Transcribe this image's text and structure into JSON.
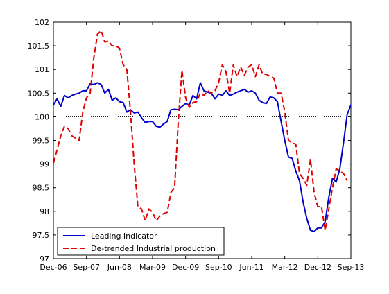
{
  "chart_data": {
    "type": "line",
    "title": "",
    "xlabel": "",
    "ylabel": "",
    "ylim": [
      97,
      102
    ],
    "xlim": [
      "2006-12",
      "2013-09"
    ],
    "x_ticks": [
      "2006-12",
      "2007-09",
      "2008-06",
      "2009-03",
      "2009-12",
      "2010-09",
      "2011-06",
      "2012-03",
      "2012-12",
      "2013-09"
    ],
    "x_tick_labels": [
      "Dec-06",
      "Sep-07",
      "Jun-08",
      "Mar-09",
      "Dec-09",
      "Sep-10",
      "Jun-11",
      "Mar-12",
      "Dec-12",
      "Sep-13"
    ],
    "y_ticks": [
      97,
      97.5,
      98,
      98.5,
      99,
      99.5,
      100,
      100.5,
      101,
      101.5,
      102
    ],
    "reference_line": {
      "y": 100,
      "style": "dotted",
      "color": "#000000"
    },
    "grid": false,
    "legend_position": "bottom-left",
    "series": [
      {
        "name": "Leading Indicator",
        "color": "#0000cc",
        "style": "solid",
        "points": [
          [
            "2006-12",
            100.25
          ],
          [
            "2007-01",
            100.38
          ],
          [
            "2007-02",
            100.22
          ],
          [
            "2007-03",
            100.45
          ],
          [
            "2007-04",
            100.4
          ],
          [
            "2007-05",
            100.45
          ],
          [
            "2007-06",
            100.48
          ],
          [
            "2007-07",
            100.5
          ],
          [
            "2007-08",
            100.55
          ],
          [
            "2007-09",
            100.55
          ],
          [
            "2007-10",
            100.7
          ],
          [
            "2007-11",
            100.68
          ],
          [
            "2007-12",
            100.72
          ],
          [
            "2008-01",
            100.68
          ],
          [
            "2008-02",
            100.5
          ],
          [
            "2008-03",
            100.58
          ],
          [
            "2008-04",
            100.35
          ],
          [
            "2008-05",
            100.4
          ],
          [
            "2008-06",
            100.32
          ],
          [
            "2008-07",
            100.3
          ],
          [
            "2008-08",
            100.1
          ],
          [
            "2008-09",
            100.15
          ],
          [
            "2008-10",
            100.08
          ],
          [
            "2008-11",
            100.1
          ],
          [
            "2008-12",
            99.98
          ],
          [
            "2009-01",
            99.88
          ],
          [
            "2009-02",
            99.9
          ],
          [
            "2009-03",
            99.9
          ],
          [
            "2009-04",
            99.8
          ],
          [
            "2009-05",
            99.78
          ],
          [
            "2009-06",
            99.85
          ],
          [
            "2009-07",
            99.9
          ],
          [
            "2009-08",
            100.15
          ],
          [
            "2009-09",
            100.16
          ],
          [
            "2009-10",
            100.15
          ],
          [
            "2009-11",
            100.22
          ],
          [
            "2009-12",
            100.28
          ],
          [
            "2010-01",
            100.25
          ],
          [
            "2010-02",
            100.45
          ],
          [
            "2010-03",
            100.38
          ],
          [
            "2010-04",
            100.72
          ],
          [
            "2010-05",
            100.55
          ],
          [
            "2010-06",
            100.52
          ],
          [
            "2010-07",
            100.5
          ],
          [
            "2010-08",
            100.38
          ],
          [
            "2010-09",
            100.48
          ],
          [
            "2010-10",
            100.45
          ],
          [
            "2010-11",
            100.55
          ],
          [
            "2010-12",
            100.45
          ],
          [
            "2011-01",
            100.48
          ],
          [
            "2011-02",
            100.52
          ],
          [
            "2011-03",
            100.55
          ],
          [
            "2011-04",
            100.58
          ],
          [
            "2011-05",
            100.52
          ],
          [
            "2011-06",
            100.55
          ],
          [
            "2011-07",
            100.5
          ],
          [
            "2011-08",
            100.35
          ],
          [
            "2011-09",
            100.3
          ],
          [
            "2011-10",
            100.28
          ],
          [
            "2011-11",
            100.42
          ],
          [
            "2011-12",
            100.4
          ],
          [
            "2012-01",
            100.32
          ],
          [
            "2012-02",
            99.9
          ],
          [
            "2012-03",
            99.5
          ],
          [
            "2012-04",
            99.15
          ],
          [
            "2012-05",
            99.12
          ],
          [
            "2012-06",
            98.85
          ],
          [
            "2012-07",
            98.65
          ],
          [
            "2012-08",
            98.2
          ],
          [
            "2012-09",
            97.85
          ],
          [
            "2012-10",
            97.6
          ],
          [
            "2012-11",
            97.57
          ],
          [
            "2012-12",
            97.65
          ],
          [
            "2013-01",
            97.65
          ],
          [
            "2013-02",
            97.78
          ],
          [
            "2013-03",
            98.3
          ],
          [
            "2013-04",
            98.7
          ],
          [
            "2013-05",
            98.62
          ],
          [
            "2013-06",
            98.9
          ],
          [
            "2013-07",
            99.45
          ],
          [
            "2013-08",
            100.05
          ],
          [
            "2013-09",
            100.25
          ],
          [
            "2013-10",
            100.22
          ],
          [
            "2013-11",
            100.2
          ]
        ]
      },
      {
        "name": "De-trended Industrial production",
        "color": "#dd0000",
        "style": "dashed",
        "points": [
          [
            "2006-12",
            99.02
          ],
          [
            "2007-01",
            99.3
          ],
          [
            "2007-02",
            99.6
          ],
          [
            "2007-03",
            99.8
          ],
          [
            "2007-04",
            99.75
          ],
          [
            "2007-05",
            99.6
          ],
          [
            "2007-06",
            99.55
          ],
          [
            "2007-07",
            99.5
          ],
          [
            "2007-08",
            100.1
          ],
          [
            "2007-09",
            100.4
          ],
          [
            "2007-10",
            100.5
          ],
          [
            "2007-11",
            101.25
          ],
          [
            "2007-12",
            101.75
          ],
          [
            "2008-01",
            101.82
          ],
          [
            "2008-02",
            101.58
          ],
          [
            "2008-03",
            101.6
          ],
          [
            "2008-04",
            101.5
          ],
          [
            "2008-05",
            101.5
          ],
          [
            "2008-06",
            101.45
          ],
          [
            "2008-07",
            101.1
          ],
          [
            "2008-08",
            101.0
          ],
          [
            "2008-09",
            100.1
          ],
          [
            "2008-10",
            99.0
          ],
          [
            "2008-11",
            98.1
          ],
          [
            "2008-12",
            98.05
          ],
          [
            "2009-01",
            97.8
          ],
          [
            "2009-02",
            98.05
          ],
          [
            "2009-03",
            97.98
          ],
          [
            "2009-04",
            97.8
          ],
          [
            "2009-05",
            97.9
          ],
          [
            "2009-06",
            97.95
          ],
          [
            "2009-07",
            97.98
          ],
          [
            "2009-08",
            98.4
          ],
          [
            "2009-09",
            98.5
          ],
          [
            "2009-10",
            99.9
          ],
          [
            "2009-11",
            100.98
          ],
          [
            "2009-12",
            100.4
          ],
          [
            "2010-01",
            100.2
          ],
          [
            "2010-02",
            100.3
          ],
          [
            "2010-03",
            100.32
          ],
          [
            "2010-04",
            100.5
          ],
          [
            "2010-05",
            100.45
          ],
          [
            "2010-06",
            100.55
          ],
          [
            "2010-07",
            100.5
          ],
          [
            "2010-08",
            100.55
          ],
          [
            "2010-09",
            100.72
          ],
          [
            "2010-10",
            101.1
          ],
          [
            "2010-11",
            100.95
          ],
          [
            "2010-12",
            100.5
          ],
          [
            "2011-01",
            101.1
          ],
          [
            "2011-02",
            100.85
          ],
          [
            "2011-03",
            101.05
          ],
          [
            "2011-04",
            100.88
          ],
          [
            "2011-05",
            101.05
          ],
          [
            "2011-06",
            101.1
          ],
          [
            "2011-07",
            100.85
          ],
          [
            "2011-08",
            101.1
          ],
          [
            "2011-09",
            100.9
          ],
          [
            "2011-10",
            100.9
          ],
          [
            "2011-11",
            100.85
          ],
          [
            "2011-12",
            100.82
          ],
          [
            "2012-01",
            100.5
          ],
          [
            "2012-02",
            100.5
          ],
          [
            "2012-03",
            100.1
          ],
          [
            "2012-04",
            99.5
          ],
          [
            "2012-05",
            99.45
          ],
          [
            "2012-06",
            99.42
          ],
          [
            "2012-07",
            98.8
          ],
          [
            "2012-08",
            98.7
          ],
          [
            "2012-09",
            98.55
          ],
          [
            "2012-10",
            99.1
          ],
          [
            "2012-11",
            98.4
          ],
          [
            "2012-12",
            98.1
          ],
          [
            "2013-01",
            98.1
          ],
          [
            "2013-02",
            97.6
          ],
          [
            "2013-03",
            98.05
          ],
          [
            "2013-04",
            98.5
          ],
          [
            "2013-05",
            98.9
          ],
          [
            "2013-06",
            98.85
          ],
          [
            "2013-07",
            98.8
          ],
          [
            "2013-08",
            98.65
          ]
        ]
      }
    ]
  }
}
